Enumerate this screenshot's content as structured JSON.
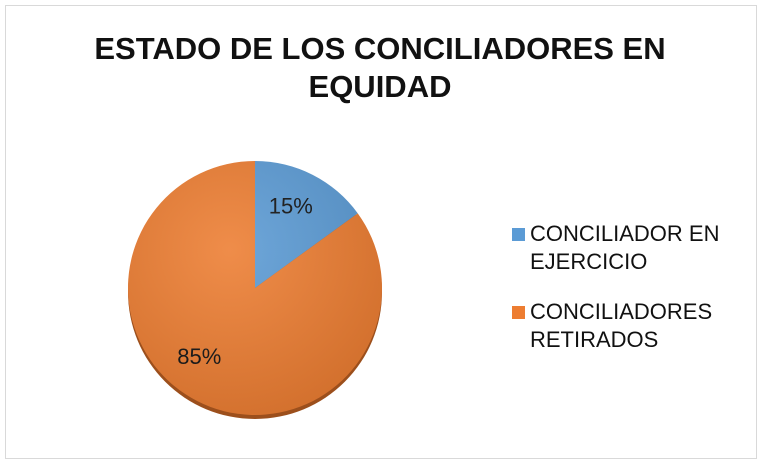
{
  "chart_data": {
    "type": "pie",
    "title": "ESTADO DE LOS CONCILIADORES EN EQUIDAD",
    "categories": [
      "CONCILIADOR EN EJERCICIO",
      "CONCILIADORES RETIRADOS"
    ],
    "values": [
      15,
      85
    ],
    "value_labels": [
      "15%",
      "85%"
    ],
    "colors": [
      "#5b9bd5",
      "#ed7d31"
    ],
    "legend": "right"
  }
}
